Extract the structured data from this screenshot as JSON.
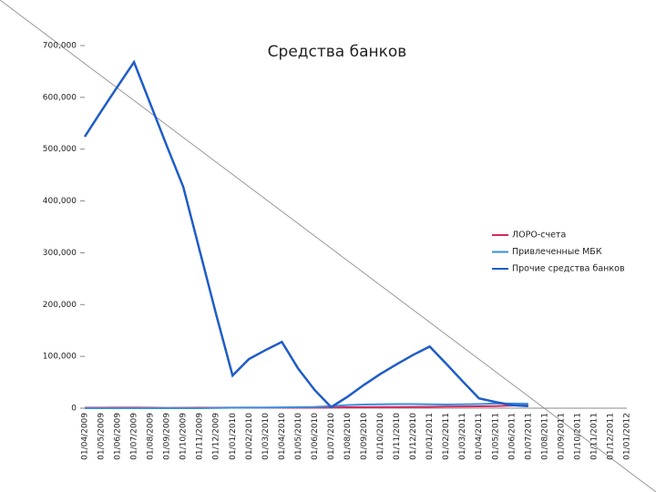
{
  "chart_data": {
    "type": "line",
    "title": "Средства банков",
    "categories": [
      "01/04/2009",
      "01/05/2009",
      "01/06/2009",
      "01/07/2009",
      "01/08/2009",
      "01/09/2009",
      "01/10/2009",
      "01/11/2009",
      "01/12/2009",
      "01/01/2010",
      "01/02/2010",
      "01/03/2010",
      "01/04/2010",
      "01/05/2010",
      "01/06/2010",
      "01/07/2010",
      "01/08/2010",
      "01/09/2010",
      "01/10/2010",
      "01/11/2010",
      "01/12/2010",
      "01/01/2011",
      "01/02/2011",
      "01/03/2011",
      "01/04/2011",
      "01/05/2011",
      "01/06/2011",
      "01/07/2011",
      "01/08/2011",
      "01/09/2011",
      "01/10/2011",
      "01/11/2011",
      "01/12/2011",
      "01/01/2012"
    ],
    "series": [
      {
        "name": "ЛОРО-счета",
        "color": "#d8285a",
        "values": [
          800,
          900,
          1000,
          1100,
          900,
          500,
          700,
          800,
          900,
          1000,
          1100,
          1200,
          1000,
          900,
          1200,
          1500,
          1800,
          2000,
          2200,
          2300,
          2500,
          2700,
          3000,
          3200,
          3500,
          4000,
          5000,
          6000,
          null,
          null,
          null,
          null,
          null,
          null
        ]
      },
      {
        "name": "Привлеченные МБК",
        "color": "#3a8ee0",
        "values": [
          0,
          0,
          0,
          0,
          0,
          0,
          0,
          0,
          500,
          800,
          1000,
          1200,
          1500,
          2000,
          2500,
          4000,
          6000,
          7000,
          7500,
          8000,
          8000,
          7500,
          7000,
          7500,
          8000,
          9000,
          9000,
          8500,
          null,
          null,
          null,
          null,
          null,
          null
        ]
      },
      {
        "name": "Прочие средства банков",
        "color": "#1f5cc8",
        "values": [
          524000,
          573000,
          621000,
          668000,
          587000,
          506000,
          427000,
          304000,
          181000,
          63000,
          95000,
          112000,
          128000,
          76000,
          35000,
          2000,
          22000,
          45000,
          66000,
          85000,
          103000,
          119000,
          86000,
          52000,
          19000,
          12000,
          6000,
          4000,
          null,
          null,
          null,
          null,
          null,
          null
        ]
      }
    ],
    "ylim": [
      0,
      700000
    ],
    "yticks": [
      0,
      {
        "value": 100000,
        "label": "100,000"
      },
      {
        "value": 200000,
        "label": "200,000"
      },
      {
        "value": 300000,
        "label": "300,000"
      },
      {
        "value": 400000,
        "label": "400,000"
      },
      {
        "value": 500000,
        "label": "500,000"
      },
      {
        "value": 600000,
        "label": "600,000"
      },
      {
        "value": 700000,
        "label": "700,000"
      }
    ],
    "legend": "right"
  }
}
